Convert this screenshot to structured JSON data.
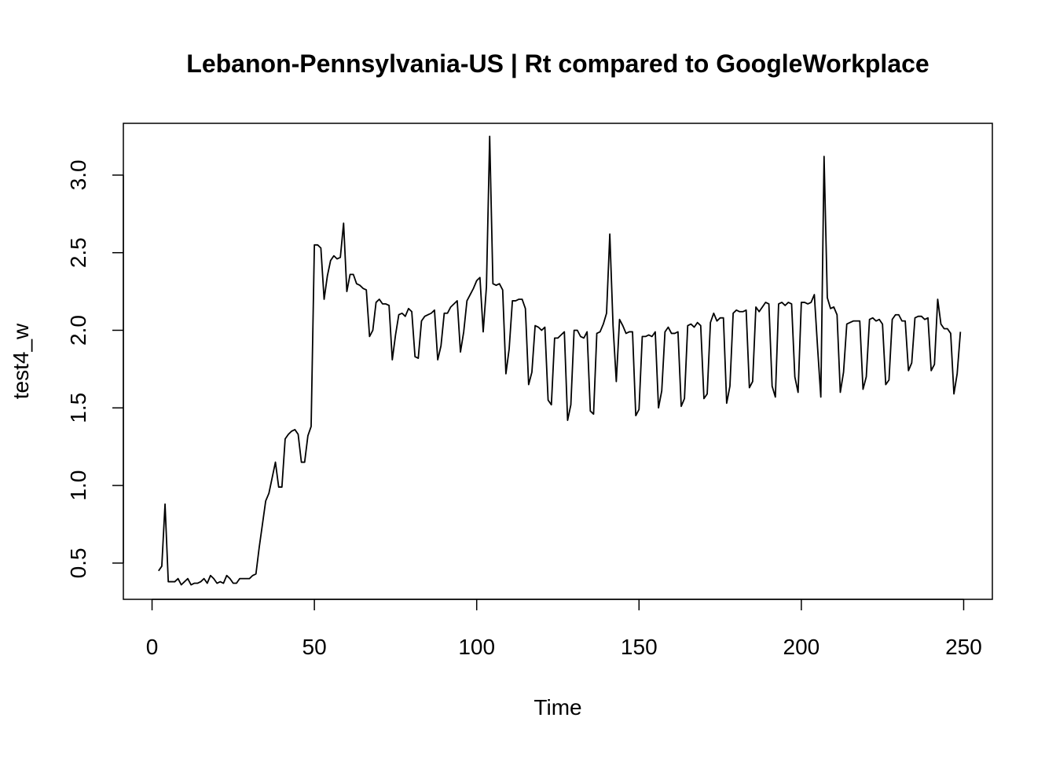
{
  "chart_data": {
    "type": "line",
    "title": "Lebanon-Pennsylvania-US | Rt compared to GoogleWorkplace",
    "xlabel": "Time",
    "ylabel": "test4_w",
    "xlim": [
      -8.84,
      258.84
    ],
    "ylim": [
      0.2664,
      3.3336
    ],
    "x_ticks": [
      0,
      50,
      100,
      150,
      200,
      250
    ],
    "y_ticks": [
      0.5,
      1.0,
      1.5,
      2.0,
      2.5,
      3.0
    ],
    "x_tick_labels": [
      "0",
      "50",
      "100",
      "150",
      "200",
      "250"
    ],
    "y_tick_labels": [
      "0.5",
      "1.0",
      "1.5",
      "2.0",
      "2.5",
      "3.0"
    ],
    "grid": false,
    "line_color": "#000000",
    "series": [
      {
        "x_start": 2,
        "x_step": 1,
        "values": [
          0.45,
          0.48,
          0.88,
          0.38,
          0.38,
          0.38,
          0.4,
          0.36,
          0.38,
          0.4,
          0.36,
          0.37,
          0.37,
          0.38,
          0.4,
          0.37,
          0.42,
          0.4,
          0.37,
          0.38,
          0.37,
          0.42,
          0.4,
          0.37,
          0.37,
          0.4,
          0.4,
          0.4,
          0.4,
          0.42,
          0.43,
          0.6,
          0.75,
          0.9,
          0.95,
          1.05,
          1.15,
          0.99,
          0.99,
          1.3,
          1.33,
          1.35,
          1.36,
          1.33,
          1.15,
          1.15,
          1.32,
          1.38,
          2.55,
          2.55,
          2.53,
          2.2,
          2.35,
          2.45,
          2.48,
          2.46,
          2.47,
          2.69,
          2.25,
          2.36,
          2.36,
          2.3,
          2.29,
          2.27,
          2.26,
          1.96,
          2.0,
          2.18,
          2.2,
          2.17,
          2.17,
          2.16,
          1.81,
          1.97,
          2.1,
          2.11,
          2.09,
          2.14,
          2.12,
          1.83,
          1.82,
          2.06,
          2.09,
          2.1,
          2.11,
          2.13,
          1.81,
          1.9,
          2.11,
          2.11,
          2.15,
          2.17,
          2.19,
          1.86,
          1.99,
          2.19,
          2.23,
          2.27,
          2.32,
          2.34,
          1.99,
          2.28,
          3.25,
          2.3,
          2.29,
          2.3,
          2.26,
          1.72,
          1.88,
          2.19,
          2.19,
          2.2,
          2.2,
          2.14,
          1.65,
          1.73,
          2.03,
          2.02,
          2.0,
          2.02,
          1.55,
          1.52,
          1.95,
          1.95,
          1.97,
          1.99,
          1.42,
          1.52,
          2.0,
          2.0,
          1.96,
          1.95,
          1.99,
          1.48,
          1.46,
          1.98,
          1.99,
          2.04,
          2.11,
          2.62,
          2.03,
          1.67,
          2.07,
          2.03,
          1.98,
          1.99,
          1.99,
          1.45,
          1.49,
          1.96,
          1.96,
          1.97,
          1.96,
          1.99,
          1.5,
          1.61,
          1.99,
          2.02,
          1.98,
          1.98,
          1.99,
          1.51,
          1.56,
          2.03,
          2.04,
          2.02,
          2.05,
          2.03,
          1.56,
          1.59,
          2.05,
          2.11,
          2.06,
          2.08,
          2.08,
          1.53,
          1.64,
          2.11,
          2.13,
          2.12,
          2.12,
          2.13,
          1.63,
          1.67,
          2.15,
          2.12,
          2.15,
          2.18,
          2.17,
          1.64,
          1.57,
          2.17,
          2.18,
          2.16,
          2.18,
          2.17,
          1.7,
          1.6,
          2.18,
          2.18,
          2.17,
          2.18,
          2.23,
          1.89,
          1.57,
          3.12,
          2.21,
          2.14,
          2.15,
          2.1,
          1.6,
          1.73,
          2.04,
          2.05,
          2.06,
          2.06,
          2.06,
          1.62,
          1.7,
          2.07,
          2.08,
          2.06,
          2.07,
          2.04,
          1.65,
          1.68,
          2.07,
          2.1,
          2.1,
          2.06,
          2.06,
          1.74,
          1.79,
          2.08,
          2.09,
          2.09,
          2.07,
          2.08,
          1.74,
          1.78,
          2.2,
          2.04,
          2.01,
          2.01,
          1.98,
          1.59,
          1.72,
          1.99
        ]
      }
    ]
  }
}
